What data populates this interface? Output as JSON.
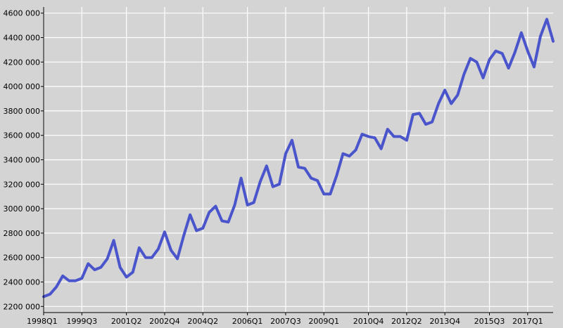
{
  "chart_data": {
    "type": "line",
    "xlabel": "",
    "ylabel": "",
    "ylim": [
      2150000,
      4650000
    ],
    "grid": true,
    "legend": "none",
    "colors": {
      "line": "#4a55cc",
      "background": "#d4d4d4",
      "grid": "#ffffff",
      "axis": "#000000"
    },
    "y_ticks": [
      2200000,
      2400000,
      2600000,
      2800000,
      3000000,
      3200000,
      3400000,
      3600000,
      3800000,
      4000000,
      4200000,
      4400000,
      4600000
    ],
    "y_tick_labels": [
      "2200 000",
      "2400 000",
      "2600 000",
      "2800 000",
      "3000 000",
      "3200 000",
      "3400 000",
      "3600 000",
      "3800 000",
      "4000 000",
      "4200 000",
      "4400 000",
      "4600 000"
    ],
    "x_tick_labels": [
      "1998Q1",
      "1999Q3",
      "2001Q2",
      "2002Q4",
      "2004Q2",
      "2006Q1",
      "2007Q3",
      "2009Q1",
      "2010Q4",
      "2012Q2",
      "2013Q4",
      "2015Q3",
      "2017Q1"
    ],
    "x_tick_index": [
      0,
      6,
      13,
      19,
      25,
      32,
      38,
      44,
      51,
      57,
      63,
      70,
      76
    ],
    "x": [
      "1998Q1",
      "1998Q2",
      "1998Q3",
      "1998Q4",
      "1999Q1",
      "1999Q2",
      "1999Q3",
      "1999Q4",
      "2000Q1",
      "2000Q2",
      "2000Q3",
      "2000Q4",
      "2001Q1",
      "2001Q2",
      "2001Q3",
      "2001Q4",
      "2002Q1",
      "2002Q2",
      "2002Q3",
      "2002Q4",
      "2003Q1",
      "2003Q2",
      "2003Q3",
      "2003Q4",
      "2004Q1",
      "2004Q2",
      "2004Q3",
      "2004Q4",
      "2005Q1",
      "2005Q2",
      "2005Q3",
      "2005Q4",
      "2006Q1",
      "2006Q2",
      "2006Q3",
      "2006Q4",
      "2007Q1",
      "2007Q2",
      "2007Q3",
      "2007Q4",
      "2008Q1",
      "2008Q2",
      "2008Q3",
      "2008Q4",
      "2009Q1",
      "2009Q2",
      "2009Q3",
      "2009Q4",
      "2010Q1",
      "2010Q2",
      "2010Q3",
      "2010Q4",
      "2011Q1",
      "2011Q2",
      "2011Q3",
      "2011Q4",
      "2012Q1",
      "2012Q2",
      "2012Q3",
      "2012Q4",
      "2013Q1",
      "2013Q2",
      "2013Q3",
      "2013Q4",
      "2014Q1",
      "2014Q2",
      "2014Q3",
      "2014Q4",
      "2015Q1",
      "2015Q2",
      "2015Q3",
      "2015Q4",
      "2016Q1",
      "2016Q2",
      "2016Q3",
      "2016Q4",
      "2017Q1",
      "2017Q2",
      "2017Q3",
      "2017Q4",
      "2018Q1"
    ],
    "series": [
      {
        "values": [
          2280000,
          2300000,
          2360000,
          2450000,
          2410000,
          2410000,
          2430000,
          2550000,
          2500000,
          2520000,
          2590000,
          2740000,
          2520000,
          2440000,
          2480000,
          2680000,
          2600000,
          2600000,
          2670000,
          2810000,
          2660000,
          2590000,
          2780000,
          2950000,
          2820000,
          2840000,
          2970000,
          3020000,
          2900000,
          2890000,
          3030000,
          3250000,
          3030000,
          3050000,
          3220000,
          3350000,
          3180000,
          3200000,
          3450000,
          3560000,
          3340000,
          3330000,
          3250000,
          3230000,
          3120000,
          3120000,
          3270000,
          3450000,
          3430000,
          3480000,
          3610000,
          3590000,
          3580000,
          3490000,
          3650000,
          3590000,
          3590000,
          3560000,
          3770000,
          3780000,
          3690000,
          3710000,
          3860000,
          3970000,
          3860000,
          3930000,
          4100000,
          4230000,
          4200000,
          4070000,
          4220000,
          4290000,
          4270000,
          4150000,
          4280000,
          4440000,
          4290000,
          4160000,
          4410000,
          4550000,
          4370000
        ]
      }
    ]
  }
}
